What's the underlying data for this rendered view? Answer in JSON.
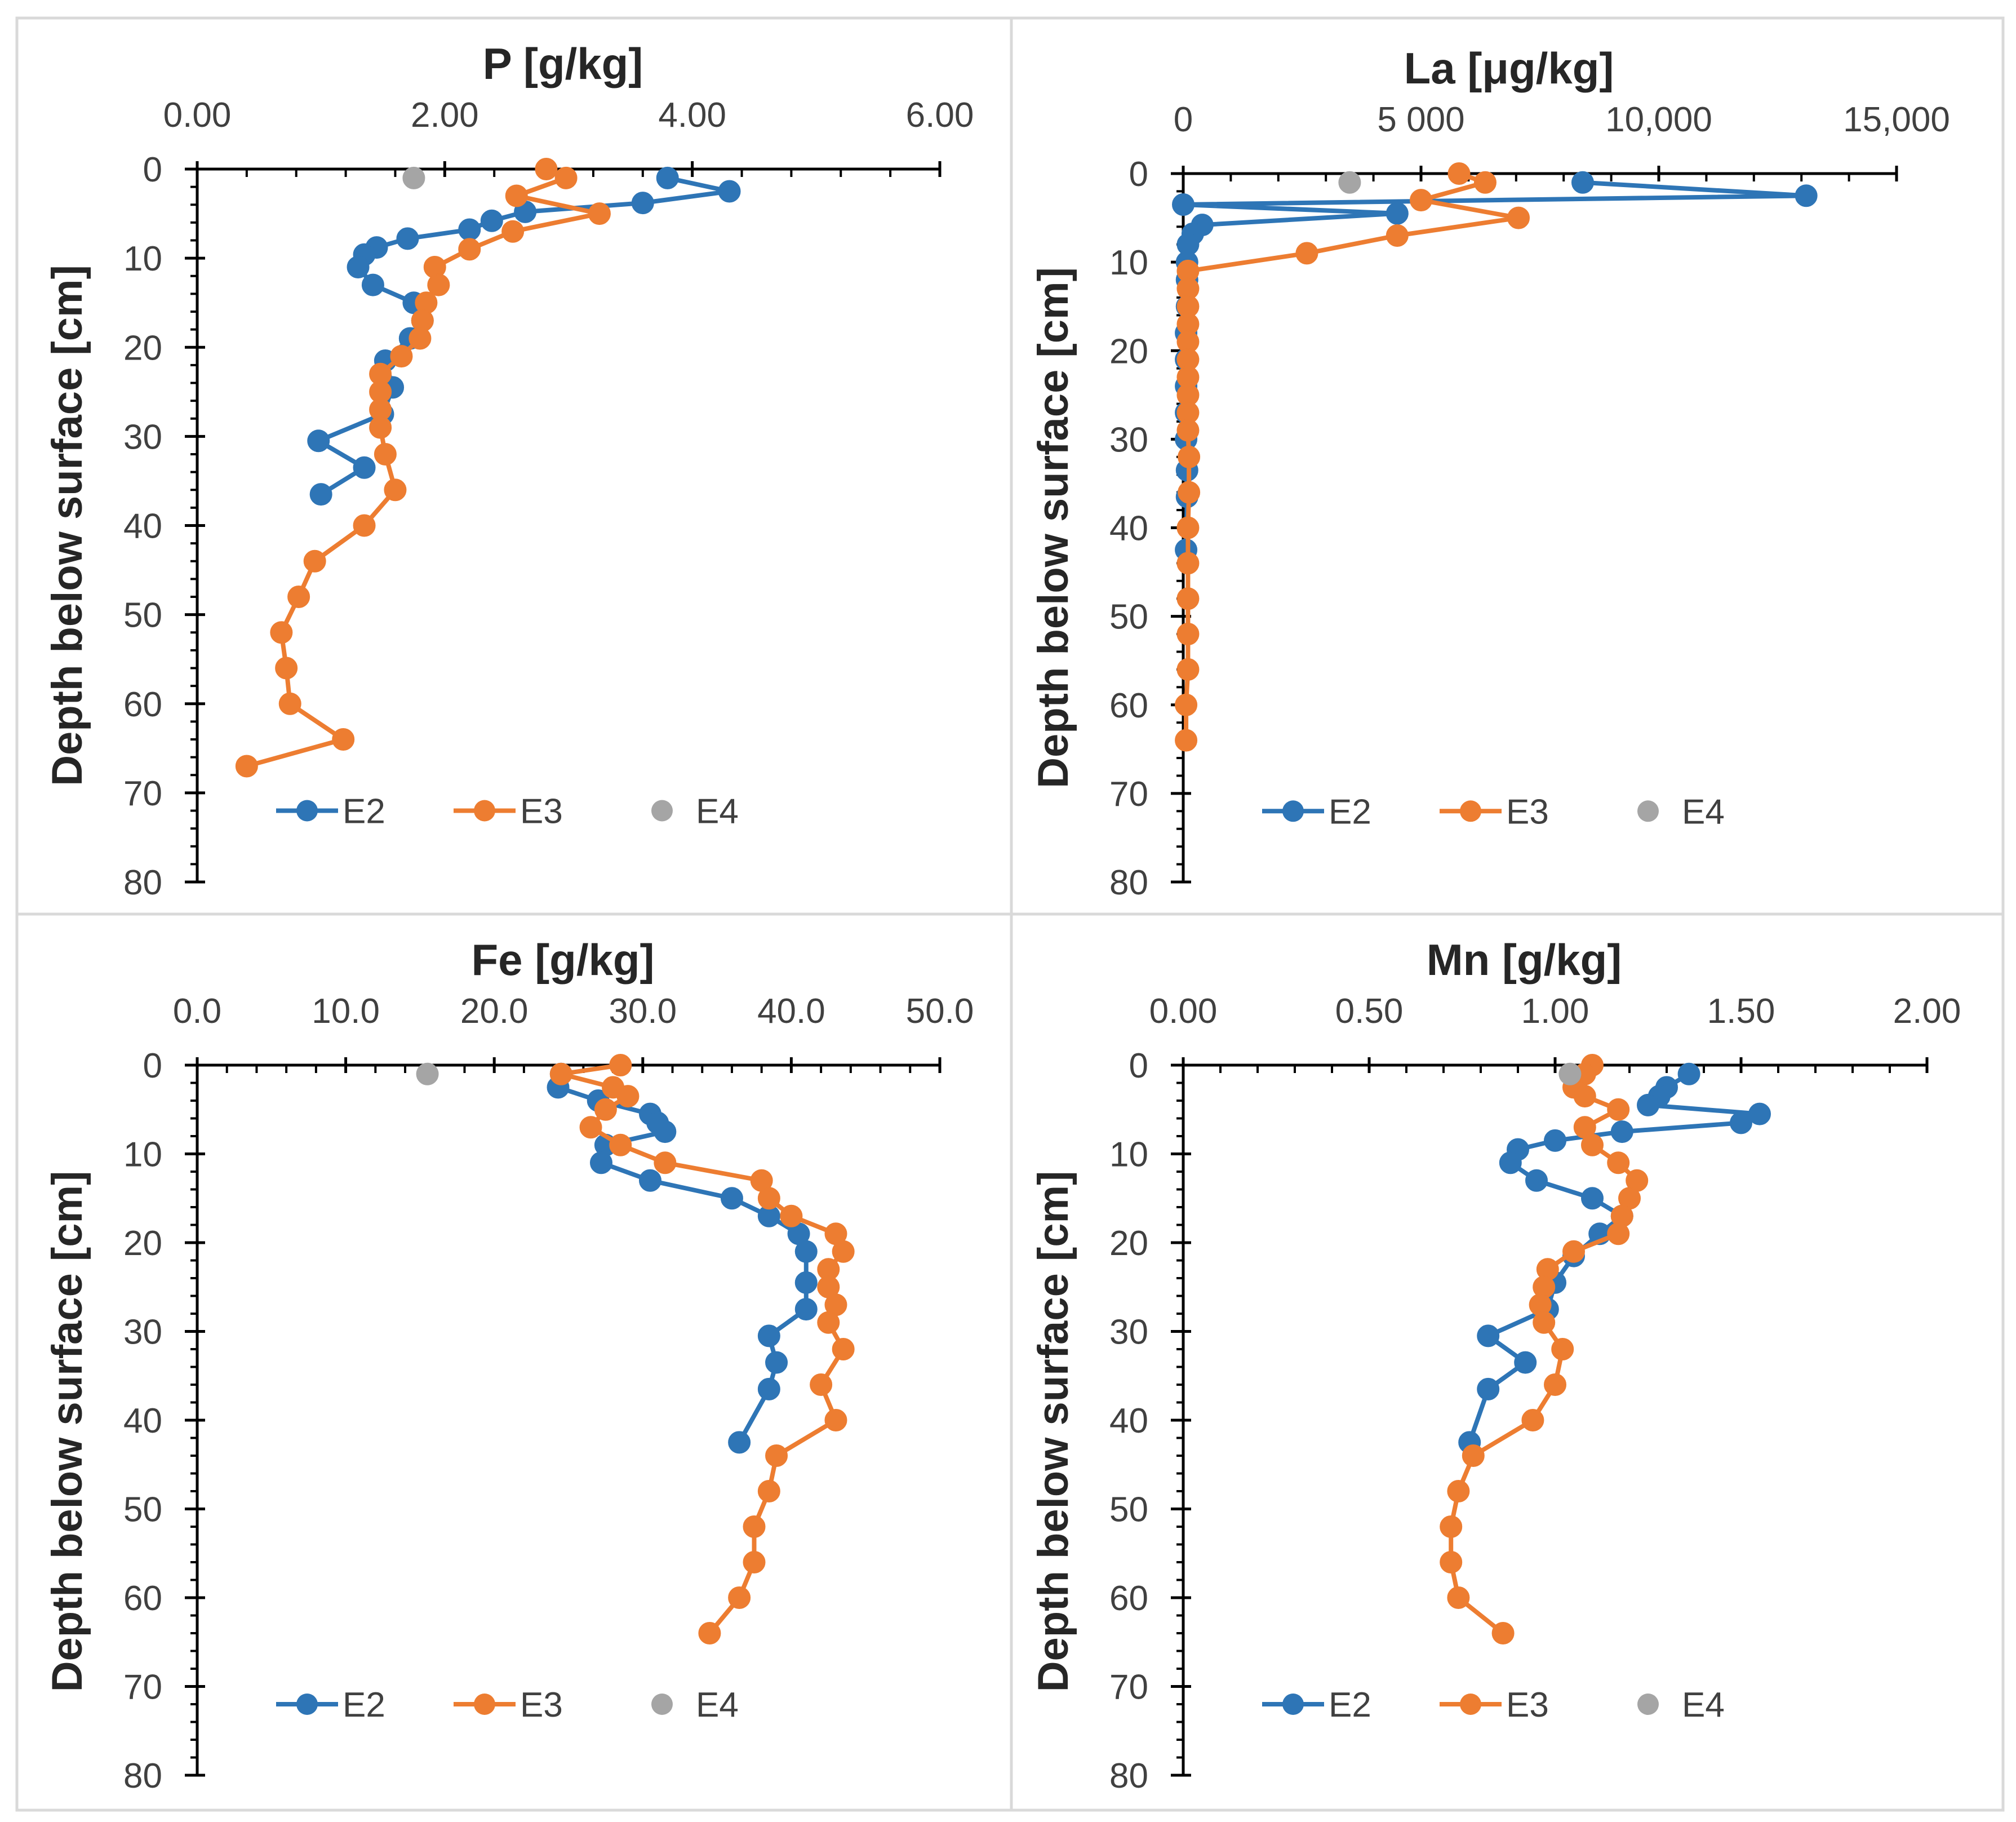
{
  "figure": {
    "panels_label": "Depth profiles of P, La, Fe and Mn in sediment cores E2, E3 and E4"
  },
  "colors": {
    "E2": "#2e75b6",
    "E3": "#ed7d31",
    "E4": "#a5a5a5",
    "axis": "#000000",
    "frame": "#d9d9d9"
  },
  "chart_data": [
    {
      "type": "line",
      "title": "P [g/kg]",
      "xlabel": "P [g/kg]",
      "ylabel": "Depth below surface [cm]",
      "xlim": [
        0,
        6
      ],
      "ylim": [
        0,
        80
      ],
      "xticks": [
        "0.00",
        "2.00",
        "4.00",
        "6.00"
      ],
      "xtick_values": [
        0,
        2,
        4,
        6
      ],
      "yticks": [
        "0",
        "10",
        "20",
        "30",
        "40",
        "50",
        "60",
        "70",
        "80"
      ],
      "yticks_values": [
        0,
        10,
        20,
        30,
        40,
        50,
        60,
        70,
        80
      ],
      "legend": [
        "E2",
        "E3",
        "E4"
      ],
      "series": [
        {
          "name": "E2",
          "points": [
            [
              3.8,
              1
            ],
            [
              4.3,
              2.5
            ],
            [
              3.6,
              3.8
            ],
            [
              2.65,
              4.8
            ],
            [
              2.38,
              5.8
            ],
            [
              2.2,
              6.8
            ],
            [
              1.7,
              7.8
            ],
            [
              1.45,
              8.8
            ],
            [
              1.35,
              9.6
            ],
            [
              1.3,
              11
            ],
            [
              1.42,
              13
            ],
            [
              1.75,
              15
            ],
            [
              1.82,
              17
            ],
            [
              1.72,
              19
            ],
            [
              1.52,
              21.5
            ],
            [
              1.58,
              24.5
            ],
            [
              1.5,
              27.5
            ],
            [
              0.98,
              30.5
            ],
            [
              1.35,
              33.5
            ],
            [
              1.0,
              36.5
            ]
          ]
        },
        {
          "name": "E3",
          "points": [
            [
              2.82,
              0
            ],
            [
              2.98,
              1
            ],
            [
              2.58,
              3
            ],
            [
              3.25,
              5
            ],
            [
              2.55,
              7
            ],
            [
              2.2,
              9
            ],
            [
              1.92,
              11
            ],
            [
              1.95,
              13
            ],
            [
              1.85,
              15
            ],
            [
              1.82,
              17
            ],
            [
              1.8,
              19
            ],
            [
              1.65,
              21
            ],
            [
              1.48,
              23
            ],
            [
              1.48,
              25
            ],
            [
              1.48,
              27
            ],
            [
              1.48,
              29
            ],
            [
              1.52,
              32
            ],
            [
              1.6,
              36
            ],
            [
              1.35,
              40
            ],
            [
              0.95,
              44
            ],
            [
              0.82,
              48
            ],
            [
              0.68,
              52
            ],
            [
              0.72,
              56
            ],
            [
              0.75,
              60
            ],
            [
              1.18,
              64
            ],
            [
              0.4,
              67
            ]
          ]
        },
        {
          "name": "E4",
          "points": [
            [
              1.75,
              1
            ]
          ]
        }
      ]
    },
    {
      "type": "line",
      "title": "La [μg/kg]",
      "xlabel": "La [μg/kg]",
      "ylabel": "Depth below surface [cm]",
      "xlim": [
        0,
        15000
      ],
      "ylim": [
        0,
        80
      ],
      "xticks": [
        "0",
        "5 000",
        "10,000",
        "15,000"
      ],
      "xtick_values": [
        0,
        5000,
        10000,
        15000
      ],
      "yticks": [
        "0",
        "10",
        "20",
        "30",
        "40",
        "50",
        "60",
        "70",
        "80"
      ],
      "yticks_values": [
        0,
        10,
        20,
        30,
        40,
        50,
        60,
        70,
        80
      ],
      "legend": [
        "E2",
        "E3",
        "E4"
      ],
      "series": [
        {
          "name": "E2",
          "points": [
            [
              8400,
              1
            ],
            [
              13100,
              2.5
            ],
            [
              0,
              3.5
            ],
            [
              4500,
              4.5
            ],
            [
              400,
              5.8
            ],
            [
              200,
              6.8
            ],
            [
              100,
              8
            ],
            [
              80,
              10
            ],
            [
              80,
              12
            ],
            [
              80,
              15
            ],
            [
              60,
              18
            ],
            [
              60,
              21
            ],
            [
              60,
              24
            ],
            [
              60,
              27
            ],
            [
              60,
              30
            ],
            [
              80,
              33.5
            ],
            [
              80,
              36.5
            ],
            [
              60,
              42.5
            ]
          ]
        },
        {
          "name": "E3",
          "points": [
            [
              5800,
              0
            ],
            [
              6350,
              1
            ],
            [
              5000,
              3
            ],
            [
              7050,
              5
            ],
            [
              4500,
              7
            ],
            [
              2600,
              9
            ],
            [
              100,
              11
            ],
            [
              100,
              13
            ],
            [
              100,
              15
            ],
            [
              100,
              17
            ],
            [
              100,
              19
            ],
            [
              100,
              21
            ],
            [
              100,
              23
            ],
            [
              100,
              25
            ],
            [
              100,
              27
            ],
            [
              100,
              29
            ],
            [
              120,
              32
            ],
            [
              120,
              36
            ],
            [
              100,
              40
            ],
            [
              100,
              44
            ],
            [
              100,
              48
            ],
            [
              100,
              52
            ],
            [
              100,
              56
            ],
            [
              60,
              60
            ],
            [
              60,
              64
            ]
          ]
        },
        {
          "name": "E4",
          "points": [
            [
              3500,
              1
            ]
          ]
        }
      ]
    },
    {
      "type": "line",
      "title": "Fe [g/kg]",
      "xlabel": "Fe [g/kg]",
      "ylabel": "Depth below surface [cm]",
      "xlim": [
        0,
        50
      ],
      "ylim": [
        0,
        80
      ],
      "xticks": [
        "0.0",
        "10.0",
        "20.0",
        "30.0",
        "40.0",
        "50.0"
      ],
      "xtick_values": [
        0,
        10,
        20,
        30,
        40,
        50
      ],
      "yticks": [
        "0",
        "10",
        "20",
        "30",
        "40",
        "50",
        "60",
        "70",
        "80"
      ],
      "yticks_values": [
        0,
        10,
        20,
        30,
        40,
        50,
        60,
        70,
        80
      ],
      "legend": [
        "E2",
        "E3",
        "E4"
      ],
      "series": [
        {
          "name": "E2",
          "points": [
            [
              24.5,
              1
            ],
            [
              24.3,
              2.5
            ],
            [
              27,
              4
            ],
            [
              30.5,
              5.5
            ],
            [
              31,
              6.5
            ],
            [
              31.5,
              7.5
            ],
            [
              27.5,
              9
            ],
            [
              27.2,
              11
            ],
            [
              30.5,
              13
            ],
            [
              36,
              15
            ],
            [
              38.5,
              17
            ],
            [
              40.5,
              19
            ],
            [
              41,
              21
            ],
            [
              41,
              24.5
            ],
            [
              41,
              27.5
            ],
            [
              38.5,
              30.5
            ],
            [
              39,
              33.5
            ],
            [
              38.5,
              36.5
            ],
            [
              36.5,
              42.5
            ]
          ]
        },
        {
          "name": "E3",
          "points": [
            [
              28.5,
              0
            ],
            [
              24.5,
              1
            ],
            [
              28,
              2.5
            ],
            [
              29,
              3.5
            ],
            [
              27.5,
              5
            ],
            [
              26.5,
              7
            ],
            [
              28.5,
              9
            ],
            [
              31.5,
              11
            ],
            [
              38,
              13
            ],
            [
              38.5,
              15
            ],
            [
              40,
              17
            ],
            [
              43,
              19
            ],
            [
              43.5,
              21
            ],
            [
              42.5,
              23
            ],
            [
              42.5,
              25
            ],
            [
              43,
              27
            ],
            [
              42.5,
              29
            ],
            [
              43.5,
              32
            ],
            [
              42,
              36
            ],
            [
              43,
              40
            ],
            [
              39,
              44
            ],
            [
              38.5,
              48
            ],
            [
              37.5,
              52
            ],
            [
              37.5,
              56
            ],
            [
              36.5,
              60
            ],
            [
              34.5,
              64
            ]
          ]
        },
        {
          "name": "E4",
          "points": [
            [
              15.5,
              1
            ]
          ]
        }
      ]
    },
    {
      "type": "line",
      "title": "Mn [g/kg]",
      "xlabel": "Mn [g/kg]",
      "ylabel": "Depth below surface [cm]",
      "xlim": [
        0,
        2
      ],
      "ylim": [
        0,
        80
      ],
      "xticks": [
        "0.00",
        "0.50",
        "1.00",
        "1.50",
        "2.00"
      ],
      "xtick_values": [
        0,
        0.5,
        1,
        1.5,
        2
      ],
      "yticks": [
        "0",
        "10",
        "20",
        "30",
        "40",
        "50",
        "60",
        "70",
        "80"
      ],
      "yticks_values": [
        0,
        10,
        20,
        30,
        40,
        50,
        60,
        70,
        80
      ],
      "legend": [
        "E2",
        "E3",
        "E4"
      ],
      "series": [
        {
          "name": "E2",
          "points": [
            [
              1.36,
              1
            ],
            [
              1.3,
              2.5
            ],
            [
              1.28,
              3.5
            ],
            [
              1.25,
              4.5
            ],
            [
              1.55,
              5.5
            ],
            [
              1.5,
              6.5
            ],
            [
              1.18,
              7.5
            ],
            [
              1.0,
              8.5
            ],
            [
              0.9,
              9.5
            ],
            [
              0.88,
              11
            ],
            [
              0.95,
              13
            ],
            [
              1.1,
              15
            ],
            [
              1.18,
              17
            ],
            [
              1.12,
              19
            ],
            [
              1.05,
              21.5
            ],
            [
              1.0,
              24.5
            ],
            [
              0.98,
              27.5
            ],
            [
              0.82,
              30.5
            ],
            [
              0.92,
              33.5
            ],
            [
              0.82,
              36.5
            ],
            [
              0.77,
              42.5
            ]
          ]
        },
        {
          "name": "E3",
          "points": [
            [
              1.1,
              0
            ],
            [
              1.08,
              1
            ],
            [
              1.05,
              2.5
            ],
            [
              1.08,
              3.5
            ],
            [
              1.17,
              5
            ],
            [
              1.08,
              7
            ],
            [
              1.1,
              9
            ],
            [
              1.17,
              11
            ],
            [
              1.22,
              13
            ],
            [
              1.2,
              15
            ],
            [
              1.18,
              17
            ],
            [
              1.17,
              19
            ],
            [
              1.05,
              21
            ],
            [
              0.98,
              23
            ],
            [
              0.97,
              25
            ],
            [
              0.96,
              27
            ],
            [
              0.97,
              29
            ],
            [
              1.02,
              32
            ],
            [
              1.0,
              36
            ],
            [
              0.94,
              40
            ],
            [
              0.78,
              44
            ],
            [
              0.74,
              48
            ],
            [
              0.72,
              52
            ],
            [
              0.72,
              56
            ],
            [
              0.74,
              60
            ],
            [
              0.86,
              64
            ]
          ]
        },
        {
          "name": "E4",
          "points": [
            [
              1.04,
              1
            ]
          ]
        }
      ]
    }
  ]
}
